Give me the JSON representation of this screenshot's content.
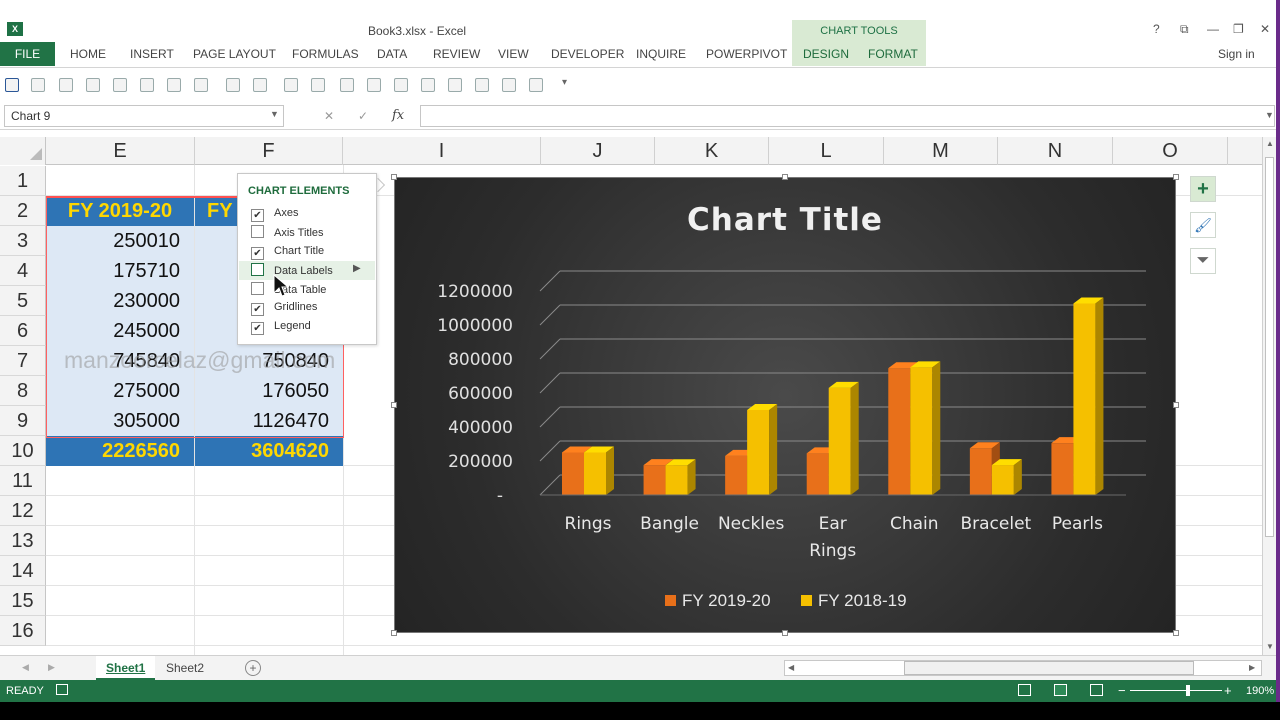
{
  "window": {
    "app_icon": "X",
    "title": "Book3.xlsx - Excel",
    "context_group": "CHART TOOLS",
    "controls": [
      "?",
      "⧉",
      "—",
      "❐",
      "✕"
    ],
    "sign_in": "Sign in"
  },
  "ribbon": {
    "file": "FILE",
    "tabs": [
      "HOME",
      "INSERT",
      "PAGE LAYOUT",
      "FORMULAS",
      "DATA",
      "REVIEW",
      "VIEW",
      "DEVELOPER",
      "INQUIRE",
      "POWERPIVOT"
    ],
    "context_tabs": [
      "DESIGN",
      "FORMAT"
    ]
  },
  "formula_bar": {
    "name_box": "Chart 9",
    "cancel": "✕",
    "enter": "✓",
    "fx": "fx",
    "value": ""
  },
  "columns": [
    "E",
    "F",
    "I",
    "J",
    "K",
    "L",
    "M",
    "N",
    "O"
  ],
  "rows": [
    "1",
    "2",
    "3",
    "4",
    "5",
    "6",
    "7",
    "8",
    "9",
    "10",
    "11",
    "12",
    "13",
    "14",
    "15",
    "16"
  ],
  "cells": {
    "E2": "FY 2019-20",
    "F2": "FY",
    "E3": "250010",
    "E4": "175710",
    "E5": "230000",
    "E6": "245000",
    "E7": "745840",
    "F7": "750840",
    "E8": "275000",
    "F8": "176050",
    "E9": "305000",
    "F9": "1126470",
    "E10": "2226560",
    "F10": "3604620"
  },
  "watermark": "manzoorcelaz@gmail.com",
  "chart_elements_popup": {
    "title": "CHART ELEMENTS",
    "options": [
      {
        "label": "Axes",
        "checked": true
      },
      {
        "label": "Axis Titles",
        "checked": false
      },
      {
        "label": "Chart Title",
        "checked": true
      },
      {
        "label": "Data Labels",
        "checked": false
      },
      {
        "label": "Data Table",
        "checked": false
      },
      {
        "label": "Gridlines",
        "checked": true
      },
      {
        "label": "Legend",
        "checked": true
      }
    ],
    "submenu_arrow": "▶"
  },
  "side_buttons": {
    "plus": "+",
    "brush": "🖌",
    "filter": "⏷"
  },
  "chart_data": {
    "type": "bar",
    "title": "Chart Title",
    "categories": [
      "Rings",
      "Bangle",
      "Neckles",
      "Ear Rings",
      "Chain",
      "Bracelet",
      "Pearls"
    ],
    "series": [
      {
        "name": "FY 2019-20",
        "values": [
          250010,
          175710,
          230000,
          245000,
          745840,
          275000,
          305000
        ],
        "color": "#e8701a"
      },
      {
        "name": "FY 2018-19",
        "values": [
          250000,
          175000,
          500000,
          630000,
          750840,
          176050,
          1126470
        ],
        "color": "#f5c000"
      }
    ],
    "ylim": [
      0,
      1200000
    ],
    "y_ticks": [
      "-",
      "200000",
      "400000",
      "600000",
      "800000",
      "1000000",
      "1200000"
    ],
    "grid": true,
    "legend_position": "bottom",
    "style": "3-D clustered column"
  },
  "sheets": {
    "tabs": [
      "Sheet1",
      "Sheet2"
    ],
    "active": "Sheet1",
    "add": "+"
  },
  "status": {
    "ready": "READY",
    "zoom": "190%",
    "zoom_minus": "−",
    "zoom_plus": "+"
  }
}
